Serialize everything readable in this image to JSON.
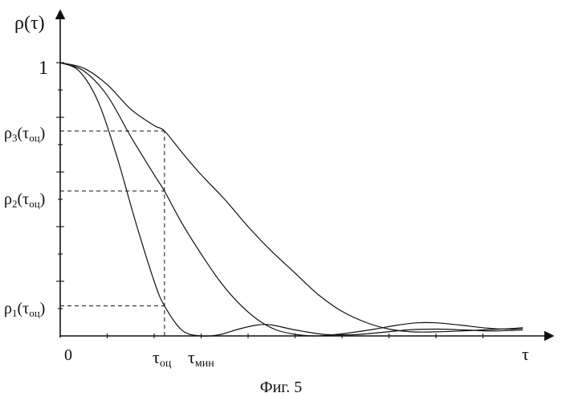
{
  "chart_data": {
    "type": "line",
    "title": "",
    "caption": "Фиг. 5",
    "ylabel": {
      "main": "ρ(τ)"
    },
    "xlabel": "τ",
    "origin_label": "0",
    "ylim": [
      0,
      1.15
    ],
    "xlim": [
      0,
      1
    ],
    "y_tick_labels": [
      {
        "value": 1.0,
        "text": "1"
      },
      {
        "value": 0.75,
        "main": "ρ",
        "sub1": "3",
        "mid": "(τ",
        "sub2": "оц",
        "end": ")"
      },
      {
        "value": 0.53,
        "main": "ρ",
        "sub1": "2",
        "mid": "(τ",
        "sub2": "оц",
        "end": ")"
      },
      {
        "value": 0.11,
        "main": "ρ",
        "sub1": "1",
        "mid": "(τ",
        "sub2": "оц",
        "end": ")"
      }
    ],
    "x_tick_labels": [
      {
        "value": 0.222,
        "main": "τ",
        "sub": "оц"
      },
      {
        "value": 0.3,
        "main": "τ",
        "sub": "мин"
      }
    ],
    "tau_oc": 0.222,
    "series": [
      {
        "values": [
          [
            0,
            1
          ],
          [
            0.04,
            0.97
          ],
          [
            0.08,
            0.86
          ],
          [
            0.12,
            0.66
          ],
          [
            0.16,
            0.42
          ],
          [
            0.2,
            0.2
          ],
          [
            0.222,
            0.11
          ],
          [
            0.26,
            0.02
          ],
          [
            0.3,
            0
          ],
          [
            0.34,
            0.005
          ],
          [
            0.38,
            0.025
          ],
          [
            0.42,
            0.04
          ],
          [
            0.45,
            0.04
          ],
          [
            0.5,
            0.022
          ],
          [
            0.56,
            0.006
          ],
          [
            0.62,
            0.004
          ],
          [
            0.68,
            0.012
          ],
          [
            0.74,
            0.022
          ],
          [
            0.8,
            0.025
          ],
          [
            0.86,
            0.022
          ],
          [
            0.92,
            0.018
          ],
          [
            0.985,
            0.022
          ]
        ]
      },
      {
        "values": [
          [
            0,
            1
          ],
          [
            0.05,
            0.97
          ],
          [
            0.1,
            0.88
          ],
          [
            0.15,
            0.73
          ],
          [
            0.2,
            0.59
          ],
          [
            0.222,
            0.53
          ],
          [
            0.26,
            0.41
          ],
          [
            0.3,
            0.3
          ],
          [
            0.34,
            0.2
          ],
          [
            0.38,
            0.12
          ],
          [
            0.42,
            0.06
          ],
          [
            0.46,
            0.022
          ],
          [
            0.5,
            0.006
          ],
          [
            0.54,
            0
          ],
          [
            0.58,
            0.004
          ],
          [
            0.62,
            0.012
          ],
          [
            0.67,
            0.025
          ],
          [
            0.72,
            0.04
          ],
          [
            0.76,
            0.048
          ],
          [
            0.8,
            0.048
          ],
          [
            0.85,
            0.04
          ],
          [
            0.9,
            0.03
          ],
          [
            0.95,
            0.025
          ],
          [
            0.985,
            0.028
          ]
        ]
      },
      {
        "values": [
          [
            0,
            1
          ],
          [
            0.05,
            0.98
          ],
          [
            0.1,
            0.92
          ],
          [
            0.15,
            0.83
          ],
          [
            0.2,
            0.77
          ],
          [
            0.222,
            0.75
          ],
          [
            0.26,
            0.67
          ],
          [
            0.3,
            0.59
          ],
          [
            0.35,
            0.5
          ],
          [
            0.4,
            0.4
          ],
          [
            0.45,
            0.31
          ],
          [
            0.5,
            0.23
          ],
          [
            0.55,
            0.15
          ],
          [
            0.6,
            0.09
          ],
          [
            0.65,
            0.05
          ],
          [
            0.7,
            0.025
          ],
          [
            0.75,
            0.015
          ],
          [
            0.8,
            0.015
          ],
          [
            0.85,
            0.018
          ],
          [
            0.9,
            0.022
          ],
          [
            0.95,
            0.026
          ],
          [
            0.985,
            0.03
          ]
        ]
      }
    ]
  }
}
